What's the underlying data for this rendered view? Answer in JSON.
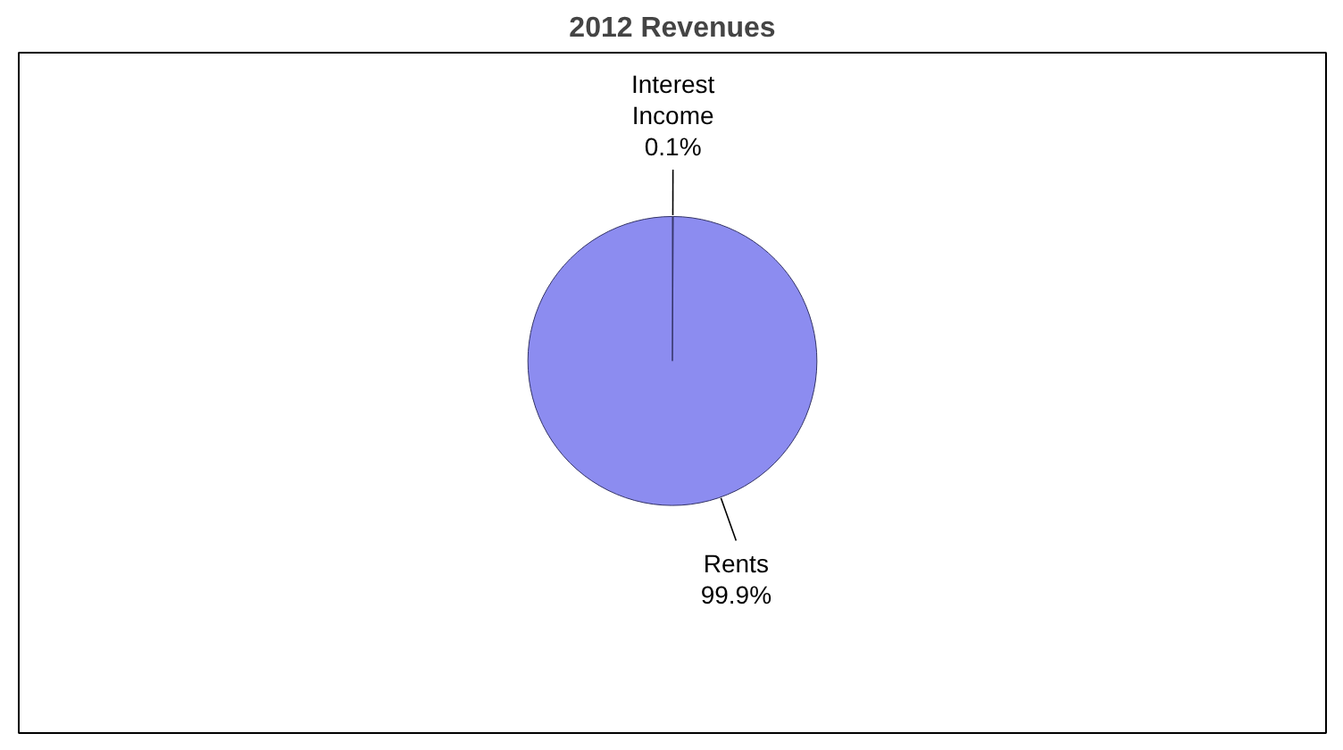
{
  "chart_data": {
    "type": "pie",
    "title": "2012 Revenues",
    "categories": [
      "Interest Income",
      "Rents"
    ],
    "values": [
      0.1,
      99.9
    ],
    "colors": [
      "#8c8cf0",
      "#8c8cf0"
    ],
    "value_labels": [
      "0.1%",
      "99.9%"
    ]
  }
}
